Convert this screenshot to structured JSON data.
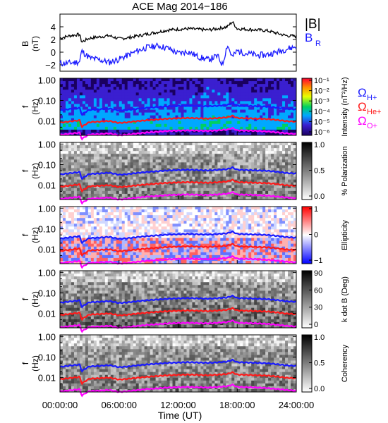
{
  "title": "ACE Mag 2014−186",
  "xlabel": "Time (UT)",
  "x_ticks": [
    "00:00:00",
    "06:00:00",
    "12:00:00",
    "18:00:00",
    "24:00:00"
  ],
  "line_colors": {
    "B": "#000000",
    "BR": "#1a1aff",
    "H": "#1a1aff",
    "He": "#ff1a1a",
    "O": "#ff00ff"
  },
  "chart_data": [
    {
      "type": "line",
      "panel": "field",
      "ylabel": "B",
      "yunit": "(nT)",
      "ylim": [
        -3,
        6
      ],
      "y_ticks": [
        "4",
        "2",
        "0",
        "−2"
      ],
      "x_range_hours": [
        0,
        24
      ],
      "series": [
        {
          "name": "|B|",
          "x": [
            0,
            1,
            2,
            2.2,
            3,
            4,
            5,
            6,
            7,
            8,
            9,
            10,
            11,
            12,
            13,
            14,
            15,
            16,
            17,
            17.5,
            18,
            19,
            20,
            21,
            22,
            23,
            24
          ],
          "values": [
            2.2,
            2.6,
            2.8,
            1.6,
            2.2,
            2.4,
            2.6,
            2.1,
            2.3,
            2.6,
            2.9,
            3.2,
            3.5,
            3.6,
            3.7,
            3.6,
            3.5,
            3.7,
            4.0,
            4.8,
            3.7,
            3.6,
            3.5,
            3.4,
            3.0,
            2.6,
            2.5
          ]
        },
        {
          "name": "B",
          "label_sub": "R",
          "x": [
            0,
            1,
            2,
            2.2,
            3,
            4,
            5,
            6,
            7,
            8,
            9,
            10,
            11,
            12,
            13,
            14,
            15,
            16,
            16.5,
            17,
            17.5,
            18,
            19,
            20,
            21,
            22,
            23,
            24
          ],
          "values": [
            -1.8,
            -1.7,
            -1.5,
            0.2,
            -0.9,
            -1.2,
            -1.6,
            -1.1,
            -0.4,
            0.3,
            0.8,
            1.0,
            0.6,
            -0.2,
            0.1,
            -0.7,
            -1.2,
            -0.6,
            -2.0,
            1.2,
            -0.8,
            0.2,
            -0.2,
            -0.5,
            -0.4,
            0.0,
            0.5,
            0.9
          ]
        }
      ]
    },
    {
      "type": "heatmap",
      "panel": "intensity",
      "ylabel": "f",
      "yunit": "(Hz)",
      "y_ticks": [
        "1.00",
        "0.10",
        "0.01"
      ],
      "colorbar_label": "Intensity (nT²/Hz)",
      "colorbar_ticks": [
        "10⁻¹",
        "10⁻²",
        "10⁻³",
        "10⁻⁴",
        "10⁻⁵",
        "10⁻⁶"
      ],
      "gyro_labels": [
        {
          "base": "Ω",
          "sub": "H+",
          "color": "#1a1aff"
        },
        {
          "base": "Ω",
          "sub": "He+",
          "color": "#ff1a1a"
        },
        {
          "base": "Ω",
          "sub": "O+",
          "color": "#ff00ff"
        }
      ]
    },
    {
      "type": "heatmap",
      "panel": "polarization",
      "ylabel": "f",
      "yunit": "(Hz)",
      "y_ticks": [
        "1.00",
        "0.10",
        "0.01"
      ],
      "colorbar_label": "% Polarization",
      "colorbar_ticks": [
        "1.0",
        "0.5",
        "0.0"
      ]
    },
    {
      "type": "heatmap",
      "panel": "ellipticity",
      "ylabel": "f",
      "yunit": "(Hz)",
      "y_ticks": [
        "1.00",
        "0.10",
        "0.01"
      ],
      "colorbar_label": "Ellipticity",
      "colorbar_ticks": [
        "1",
        "0",
        "−1"
      ]
    },
    {
      "type": "heatmap",
      "panel": "kdotb",
      "ylabel": "f",
      "yunit": "(Hz)",
      "y_ticks": [
        "1.00",
        "0.10",
        "0.01"
      ],
      "colorbar_label": "k dot B (Deg)",
      "colorbar_ticks": [
        "90",
        "60",
        "30",
        "0"
      ]
    },
    {
      "type": "heatmap",
      "panel": "coherency",
      "ylabel": "f",
      "yunit": "(Hz)",
      "y_ticks": [
        "1.00",
        "0.10",
        "0.01"
      ],
      "colorbar_label": "Coherency",
      "colorbar_ticks": [
        "1.0",
        "0.5",
        "0.0"
      ]
    }
  ],
  "gyrofrequency_hz": {
    "x_hours": [
      0,
      1,
      2,
      2.2,
      3,
      4,
      5,
      6,
      7,
      8,
      9,
      10,
      11,
      12,
      13,
      14,
      15,
      16,
      17,
      17.5,
      18,
      19,
      20,
      21,
      22,
      23,
      24
    ],
    "H": [
      0.033,
      0.038,
      0.043,
      0.02,
      0.035,
      0.037,
      0.04,
      0.032,
      0.035,
      0.04,
      0.044,
      0.048,
      0.052,
      0.054,
      0.056,
      0.054,
      0.052,
      0.055,
      0.06,
      0.072,
      0.056,
      0.054,
      0.052,
      0.05,
      0.045,
      0.039,
      0.037
    ],
    "He": [
      0.0083,
      0.0095,
      0.0108,
      0.005,
      0.0088,
      0.0093,
      0.01,
      0.008,
      0.0088,
      0.01,
      0.011,
      0.012,
      0.013,
      0.0135,
      0.014,
      0.0135,
      0.013,
      0.0138,
      0.015,
      0.018,
      0.014,
      0.0135,
      0.013,
      0.0125,
      0.0113,
      0.0098,
      0.0093
    ],
    "O": [
      0.0021,
      0.0024,
      0.0027,
      0.0013,
      0.0022,
      0.0023,
      0.0025,
      0.002,
      0.0022,
      0.0025,
      0.0028,
      0.003,
      0.0033,
      0.0034,
      0.0035,
      0.0034,
      0.0033,
      0.0035,
      0.0038,
      0.0045,
      0.0035,
      0.0034,
      0.0033,
      0.0031,
      0.0028,
      0.0025,
      0.0023
    ]
  }
}
